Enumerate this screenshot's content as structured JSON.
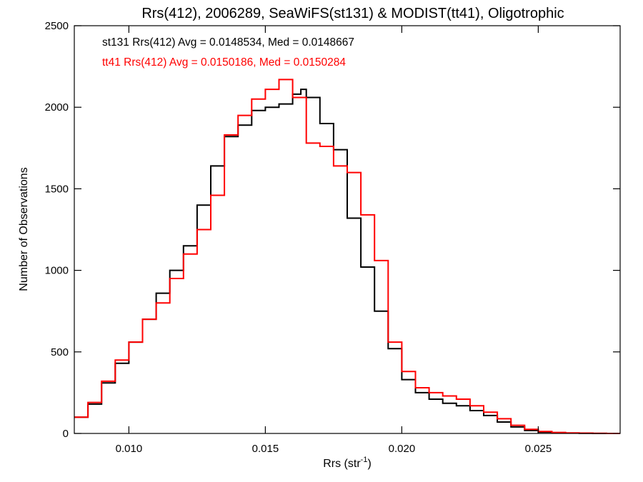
{
  "chart_data": {
    "type": "line",
    "title": "Rrs(412), 2006289, SeaWiFS(st131) & MODIST(tt41), Oligotrophic",
    "xlabel": "Rrs (str",
    "xlabel_sup": "-1",
    "xlabel_close": ")",
    "ylabel": "Number of Observations",
    "xlim": [
      0.008,
      0.028
    ],
    "ylim": [
      0,
      2500
    ],
    "x_ticks": [
      0.01,
      0.015,
      0.02,
      0.025
    ],
    "x_tick_labels": [
      "0.010",
      "0.015",
      "0.020",
      "0.025"
    ],
    "y_ticks": [
      0,
      500,
      1000,
      1500,
      2000,
      2500
    ],
    "y_tick_labels": [
      "0",
      "500",
      "1000",
      "1500",
      "2000",
      "2500"
    ],
    "grid": false,
    "step": true,
    "series": [
      {
        "name": "st131 Rrs(412) Avg = 0.0148534, Med = 0.0148667",
        "color": "#000000",
        "x": [
          0.008,
          0.0085,
          0.009,
          0.0095,
          0.01,
          0.0105,
          0.011,
          0.0115,
          0.012,
          0.0125,
          0.013,
          0.0135,
          0.014,
          0.0145,
          0.015,
          0.0155,
          0.016,
          0.0163,
          0.0165,
          0.017,
          0.0175,
          0.018,
          0.0185,
          0.019,
          0.0195,
          0.02,
          0.0205,
          0.021,
          0.0215,
          0.022,
          0.0225,
          0.023,
          0.0235,
          0.024,
          0.0245,
          0.025,
          0.0255,
          0.026,
          0.0265,
          0.027,
          0.0275,
          0.028
        ],
        "values": [
          100,
          180,
          310,
          430,
          560,
          700,
          860,
          1000,
          1150,
          1400,
          1640,
          1820,
          1890,
          1980,
          2000,
          2020,
          2080,
          2110,
          2060,
          1900,
          1740,
          1320,
          1020,
          750,
          520,
          330,
          250,
          210,
          185,
          170,
          140,
          110,
          70,
          40,
          18,
          8,
          4,
          2,
          1,
          0,
          0,
          0
        ]
      },
      {
        "name": "tt41 Rrs(412) Avg = 0.0150186, Med = 0.0150284",
        "color": "#ff0000",
        "x": [
          0.008,
          0.0085,
          0.009,
          0.0095,
          0.01,
          0.0105,
          0.011,
          0.0115,
          0.012,
          0.0125,
          0.013,
          0.0135,
          0.014,
          0.0145,
          0.015,
          0.0155,
          0.016,
          0.0165,
          0.017,
          0.0175,
          0.018,
          0.0185,
          0.019,
          0.0195,
          0.02,
          0.0205,
          0.021,
          0.0215,
          0.022,
          0.0225,
          0.023,
          0.0235,
          0.024,
          0.0245,
          0.025,
          0.0255,
          0.026,
          0.0265,
          0.027,
          0.0275,
          0.028
        ],
        "values": [
          100,
          190,
          320,
          450,
          560,
          700,
          800,
          950,
          1100,
          1250,
          1460,
          1830,
          1950,
          2050,
          2110,
          2170,
          2060,
          1780,
          1760,
          1640,
          1600,
          1340,
          1060,
          560,
          380,
          280,
          250,
          230,
          210,
          170,
          130,
          90,
          50,
          25,
          12,
          6,
          3,
          2,
          1,
          0,
          0
        ]
      }
    ]
  }
}
